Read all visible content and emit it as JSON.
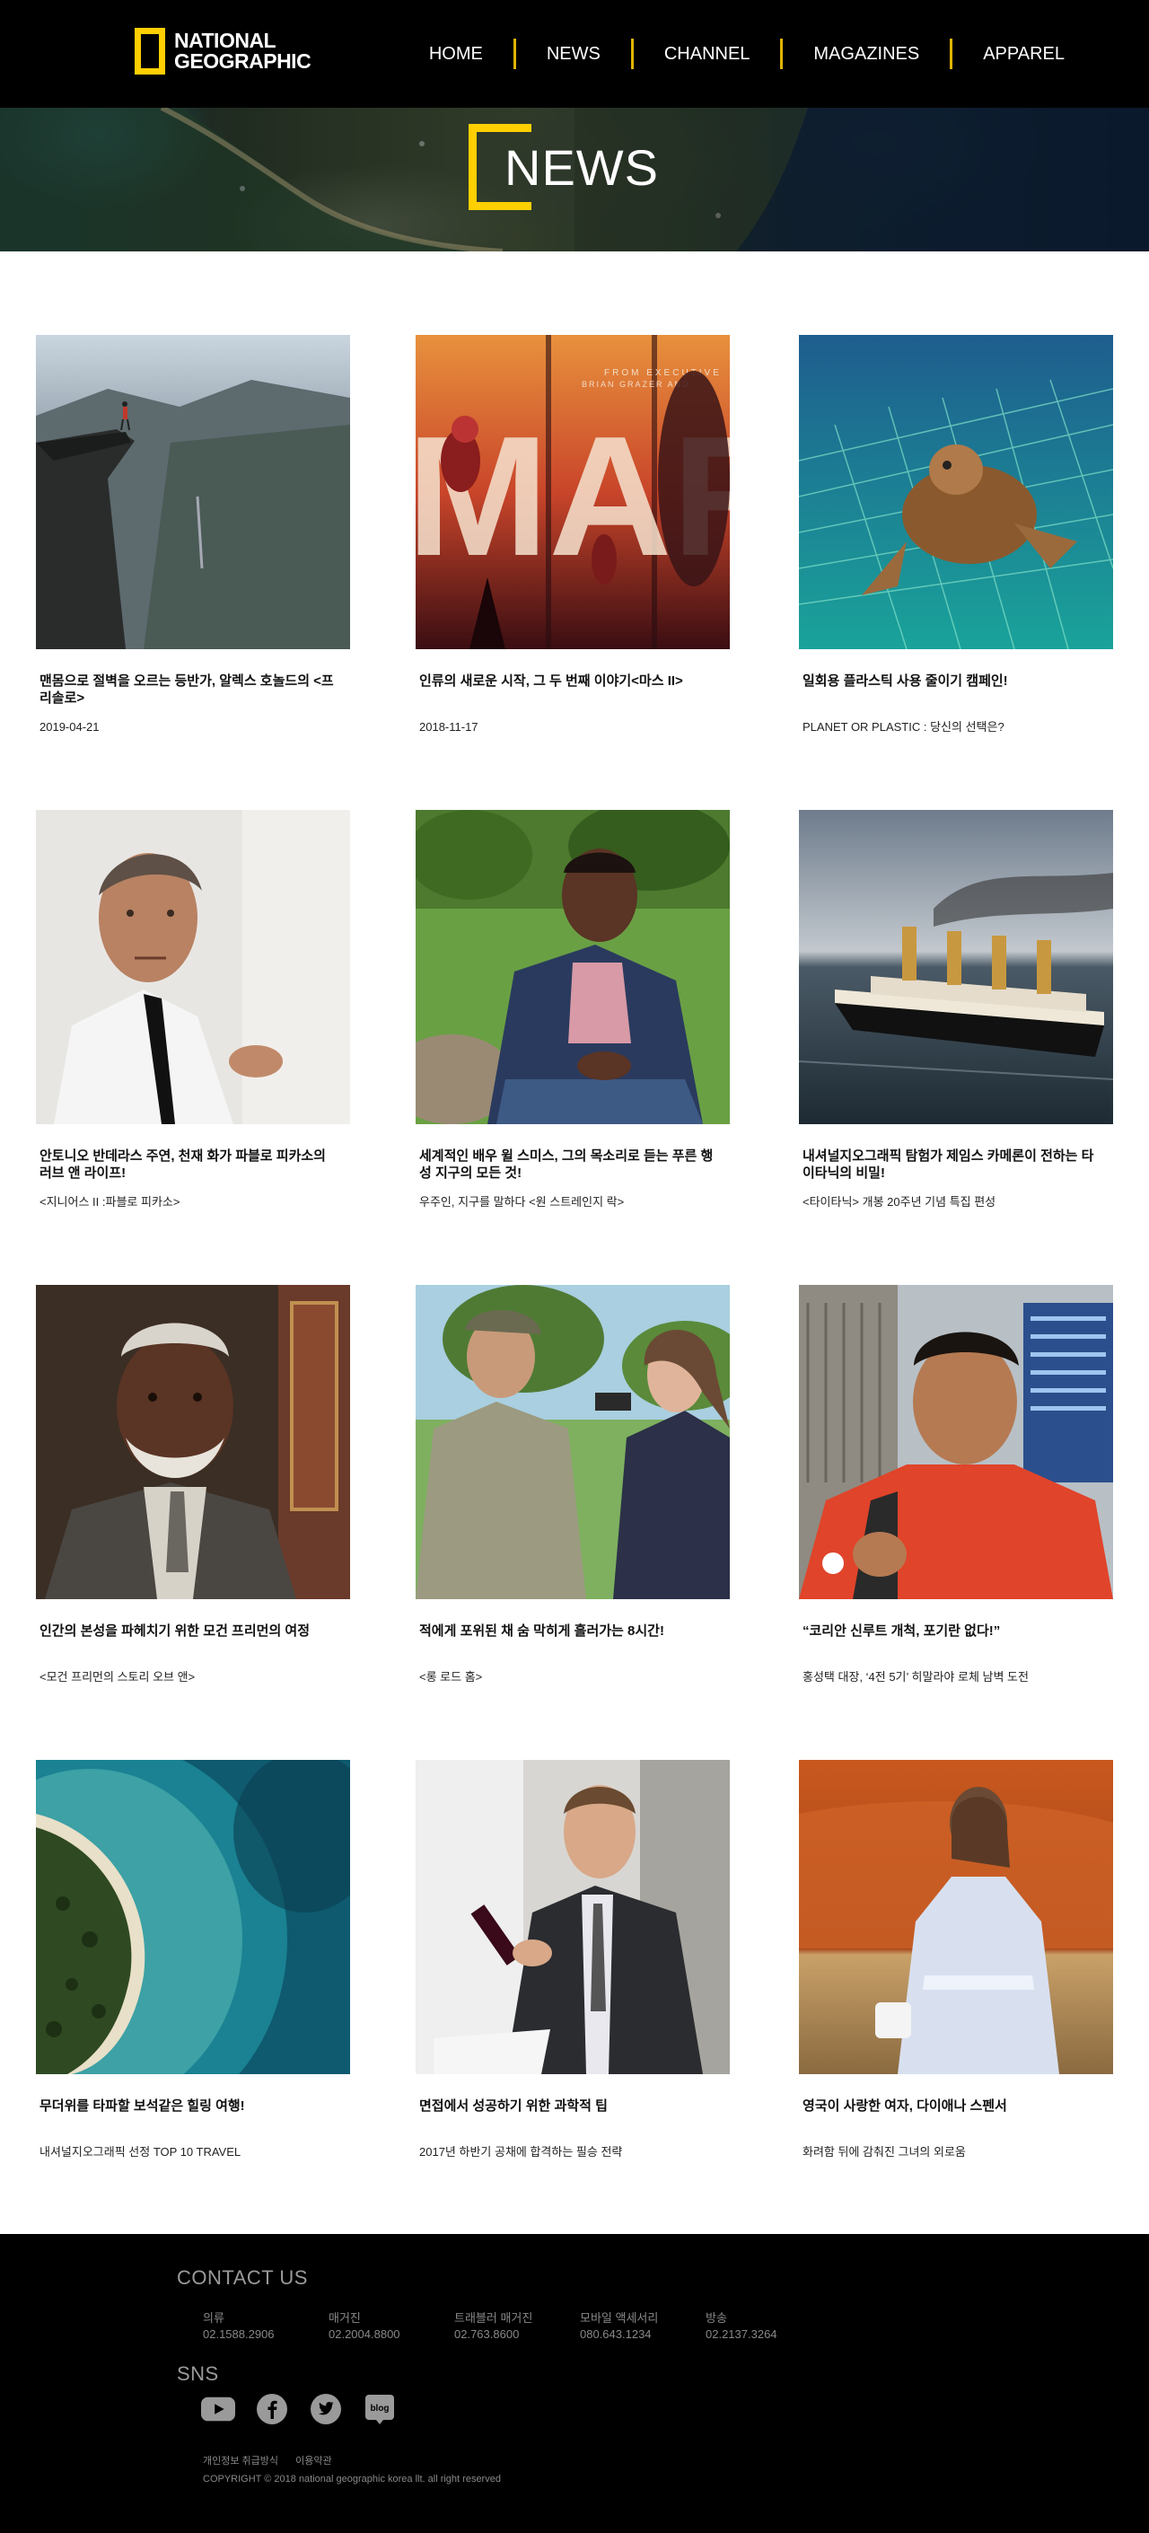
{
  "brand": {
    "line1": "NATIONAL",
    "line2": "GEOGRAPHIC",
    "accent": "#ffcf00"
  },
  "nav": [
    "HOME",
    "NEWS",
    "CHANNEL",
    "MAGAZINES",
    "APPAREL"
  ],
  "hero": {
    "title": "NEWS"
  },
  "cards": [
    {
      "title": "맨몸으로 절벽을 오르는 등반가, 알렉스 호놀드의 <프리솔로>",
      "sub": "2019-04-21",
      "image": "climber-on-cliff"
    },
    {
      "title": "인류의 새로운 시작, 그 두 번째 이야기<마스 II>",
      "sub": "2018-11-17",
      "image": "mars-poster",
      "poster_line1": "FROM EXECUTIVE",
      "poster_line2": "BRIAN GRAZER AND"
    },
    {
      "title": "일회용 플라스틱 사용 줄이기 캠페인!",
      "sub": "PLANET OR PLASTIC : 당신의 선택은?",
      "image": "turtle-in-net"
    },
    {
      "title": "안토니오 반데라스 주연, 천재 화가 파블로 피카소의 러브 앤 라이프!",
      "sub": "<지니어스 II :파블로 피카소>",
      "image": "man-portrait"
    },
    {
      "title": "세계적인 배우 윌 스미스, 그의 목소리로 듣는 푸른 행성 지구의 모든 것!",
      "sub": "우주인, 지구를 말하다 <원 스트레인지 락>",
      "image": "man-on-grass"
    },
    {
      "title": "내셔널지오그래픽 탐험가 제임스 카메론이 전하는 타이타닉의 비밀!",
      "sub": "<타이타닉> 개봉 20주년 기념 특집 편성",
      "image": "titanic-ship"
    },
    {
      "title": "인간의 본성을 파헤치기 위한 모건 프리먼의 여정",
      "sub": "<모건 프리먼의 스토리 오브 앤>",
      "image": "elder-portrait"
    },
    {
      "title": "적에게 포위된 채 숨 막히게 흘러가는 8시간!",
      "sub": "<롱 로드 홈>",
      "image": "soldier-and-woman"
    },
    {
      "title": "“코리안 신루트 개척, 포기란 없다!”",
      "sub": "홍성택 대장, ‘4전 5기’ 히말라야 로체 남벽 도전",
      "image": "mountaineer-portrait"
    },
    {
      "title": "무더위를 타파할 보석같은 힐링 여행!",
      "sub": "내셔널지오그래픽 선정 TOP 10 TRAVEL",
      "image": "island-aerial"
    },
    {
      "title": "면접에서 성공하기 위한 과학적 팁",
      "sub": "2017년 하반기 공채에 합격하는 필승 전략",
      "image": "man-with-wine"
    },
    {
      "title": "영국이 사랑한 여자, 다이애나 스펜서",
      "sub": "화려함 뒤에 감춰진 그녀의 외로움",
      "image": "woman-in-desert"
    }
  ],
  "footer": {
    "contact_heading": "CONTACT US",
    "contacts": [
      {
        "label": "의류",
        "phone": "02.1588.2906"
      },
      {
        "label": "매거진",
        "phone": "02.2004.8800"
      },
      {
        "label": "트래블러 매거진",
        "phone": "02.763.8600"
      },
      {
        "label": "모바일 액세서리",
        "phone": "080.643.1234"
      },
      {
        "label": "방송",
        "phone": "02.2137.3264"
      }
    ],
    "sns_heading": "SNS",
    "sns": [
      "youtube-icon",
      "facebook-icon",
      "twitter-icon",
      "blog-icon"
    ],
    "blog_label": "blog",
    "links": [
      "개인정보 취급방식",
      "이용약관"
    ],
    "copyright": "COPYRIGHT © 2018 national geographic korea llt.  all right reserved"
  }
}
